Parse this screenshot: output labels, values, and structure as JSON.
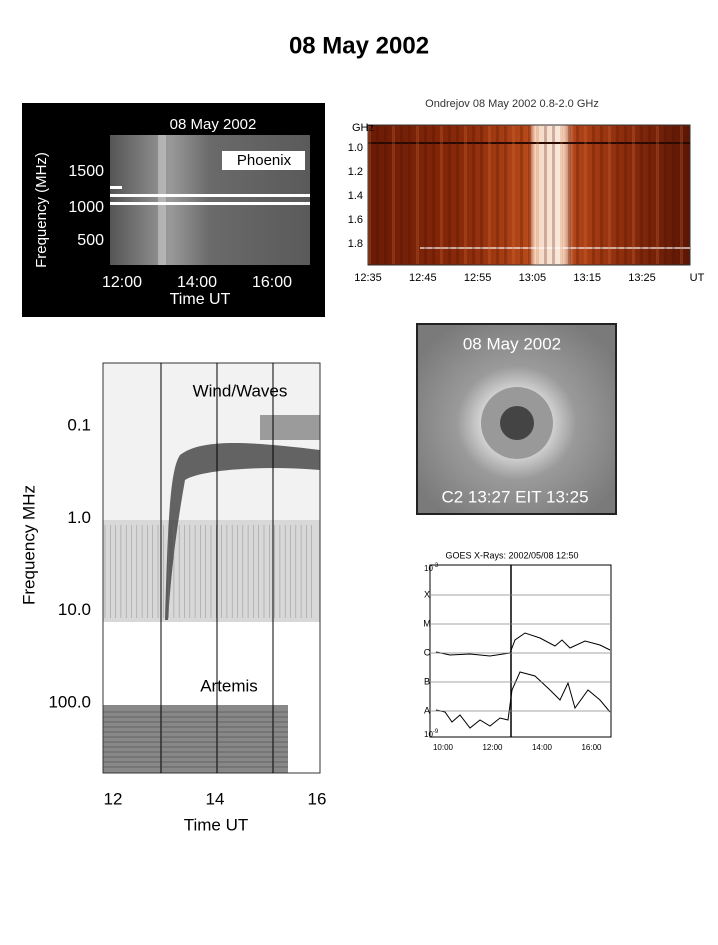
{
  "title": "08 May 2002",
  "phoenix": {
    "header": "08 May 2002",
    "label": "Phoenix",
    "y_label": "Frequency (MHz)",
    "y_ticks": [
      "1500",
      "1000",
      "500"
    ],
    "x_ticks": [
      "12:00",
      "14:00",
      "16:00"
    ],
    "x_label": "Time UT"
  },
  "ondrejov": {
    "header": "Ondrejov 08 May 2002 0.8-2.0 GHz",
    "y_unit": "GHz",
    "y_ticks": [
      "1.0",
      "1.2",
      "1.4",
      "1.6",
      "1.8"
    ],
    "x_ticks": [
      "12:35",
      "12:45",
      "12:55",
      "13:05",
      "13:15",
      "13:25"
    ],
    "x_unit": "UT"
  },
  "wind_waves": {
    "labels": [
      "Wind/Waves",
      "Artemis"
    ],
    "y_label": "Frequency MHz",
    "y_ticks": [
      "0.1",
      "1.0",
      "10.0",
      "100.0"
    ],
    "x_ticks": [
      "12",
      "14",
      "16"
    ],
    "x_label": "Time UT"
  },
  "lasco": {
    "header": "08 May 2002",
    "footer": "C2 13:27 EIT 13:25"
  },
  "goes": {
    "header": "GOES X-Rays: 2002/05/08 12:50",
    "classes": [
      "X",
      "M",
      "C",
      "B",
      "A"
    ],
    "y_top": {
      "base": "10",
      "exponent": "-3"
    },
    "y_bottom": {
      "base": "10",
      "exponent": "-9"
    },
    "x_ticks": [
      "10:00",
      "12:00",
      "14:00",
      "16:00"
    ]
  }
}
